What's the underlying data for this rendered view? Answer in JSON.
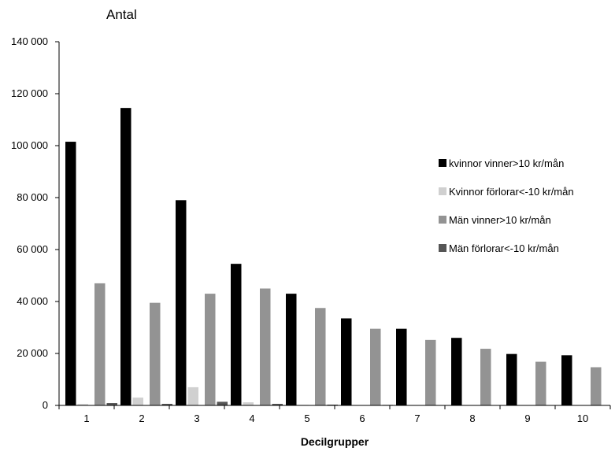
{
  "chart_data": {
    "type": "bar",
    "title": "",
    "ylabel": "Antal",
    "xlabel": "Decilgrupper",
    "ylim": [
      0,
      140000
    ],
    "yticks": [
      0,
      20000,
      40000,
      60000,
      80000,
      100000,
      120000,
      140000
    ],
    "ytick_labels": [
      "0",
      "20 000",
      "40 000",
      "60 000",
      "80 000",
      "100 000",
      "120 000",
      "140 000"
    ],
    "categories": [
      "1",
      "2",
      "3",
      "4",
      "5",
      "6",
      "7",
      "8",
      "9",
      "10"
    ],
    "grid": false,
    "legend_position": "right",
    "series": [
      {
        "name": "kvinnor vinner>10 kr/mån",
        "color": "#000000",
        "values": [
          101500,
          114500,
          79000,
          54500,
          43000,
          33500,
          29500,
          26000,
          19800,
          19300
        ]
      },
      {
        "name": "Kvinnor förlorar<-10 kr/mån",
        "color": "#d0d0d0",
        "values": [
          500,
          3000,
          7000,
          1200,
          200,
          100,
          0,
          0,
          0,
          0
        ]
      },
      {
        "name": "Män vinner>10 kr/mån",
        "color": "#939393",
        "values": [
          47000,
          39500,
          43000,
          45000,
          37500,
          29500,
          25200,
          21800,
          16800,
          14700
        ]
      },
      {
        "name": "Män förlorar<-10 kr/mån",
        "color": "#555555",
        "values": [
          900,
          600,
          1400,
          600,
          300,
          200,
          0,
          0,
          0,
          0
        ]
      }
    ]
  }
}
